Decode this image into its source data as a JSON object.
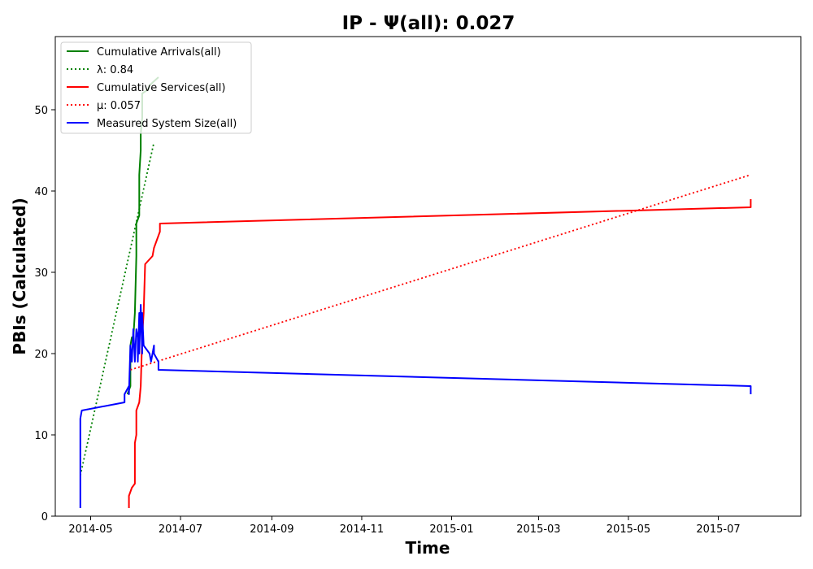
{
  "chart_data": {
    "type": "line",
    "title": "IP -  Ψ(all): 0.027",
    "xlabel": "Time",
    "ylabel": "PBIs (Calculated)",
    "x_type": "date",
    "xlim": [
      "2014-04-07",
      "2015-08-26"
    ],
    "ylim": [
      0,
      59
    ],
    "x_ticks": [
      "2014-05-01",
      "2014-07-01",
      "2014-09-01",
      "2014-11-01",
      "2015-01-01",
      "2015-03-01",
      "2015-05-01",
      "2015-07-01"
    ],
    "x_tick_labels": [
      "2014-05",
      "2014-07",
      "2014-09",
      "2014-11",
      "2015-01",
      "2015-03",
      "2015-05",
      "2015-07"
    ],
    "y_ticks": [
      0,
      10,
      20,
      30,
      40,
      50
    ],
    "y_tick_labels": [
      "0",
      "10",
      "20",
      "30",
      "40",
      "50"
    ],
    "grid": false,
    "legend_position": "top-left",
    "series": [
      {
        "name": "Cumulative Arrivals(all)",
        "legend_label": "Cumulative Arrivals(all)",
        "color": "#008000",
        "style": "solid",
        "points": [
          [
            "2014-05-26",
            15
          ],
          [
            "2014-05-28",
            16
          ],
          [
            "2014-05-28",
            21
          ],
          [
            "2014-05-29",
            22
          ],
          [
            "2014-05-30",
            22
          ],
          [
            "2014-05-31",
            25
          ],
          [
            "2014-06-01",
            32
          ],
          [
            "2014-06-01",
            36
          ],
          [
            "2014-06-03",
            37
          ],
          [
            "2014-06-03",
            42
          ],
          [
            "2014-06-04",
            45
          ],
          [
            "2014-06-04",
            47
          ],
          [
            "2014-06-05",
            49
          ],
          [
            "2014-06-05",
            52
          ],
          [
            "2014-06-09",
            52.5
          ],
          [
            "2014-06-10",
            53
          ],
          [
            "2014-06-13",
            53.5
          ],
          [
            "2014-06-16",
            54
          ]
        ]
      },
      {
        "name": "λ",
        "legend_label": "λ: 0.84",
        "color": "#008000",
        "style": "dotted",
        "points": [
          [
            "2014-04-24",
            5
          ],
          [
            "2014-06-13",
            46
          ]
        ]
      },
      {
        "name": "Cumulative Services(all)",
        "legend_label": "Cumulative Services(all)",
        "color": "#ff0000",
        "style": "solid",
        "points": [
          [
            "2014-05-27",
            1
          ],
          [
            "2014-05-27",
            2.5
          ],
          [
            "2014-05-29",
            3.5
          ],
          [
            "2014-05-31",
            4
          ],
          [
            "2014-05-31",
            9
          ],
          [
            "2014-06-01",
            10
          ],
          [
            "2014-06-01",
            13
          ],
          [
            "2014-06-03",
            14
          ],
          [
            "2014-06-04",
            16
          ],
          [
            "2014-06-05",
            22
          ],
          [
            "2014-06-06",
            25
          ],
          [
            "2014-06-07",
            31
          ],
          [
            "2014-06-12",
            32
          ],
          [
            "2014-06-13",
            33
          ],
          [
            "2014-06-17",
            35
          ],
          [
            "2014-06-17",
            36
          ],
          [
            "2015-07-23",
            38
          ],
          [
            "2015-07-23",
            39
          ]
        ]
      },
      {
        "name": "μ",
        "legend_label": "μ: 0.057",
        "color": "#ff0000",
        "style": "dotted",
        "points": [
          [
            "2014-05-28",
            18
          ],
          [
            "2015-07-23",
            42
          ]
        ]
      },
      {
        "name": "Measured System Size(all)",
        "legend_label": "Measured System Size(all)",
        "color": "#0000ff",
        "style": "solid",
        "points": [
          [
            "2014-04-24",
            1
          ],
          [
            "2014-04-24",
            12
          ],
          [
            "2014-04-25",
            13
          ],
          [
            "2014-05-24",
            14
          ],
          [
            "2014-05-24",
            15
          ],
          [
            "2014-05-27",
            16
          ],
          [
            "2014-05-27",
            15
          ],
          [
            "2014-05-28",
            21
          ],
          [
            "2014-05-29",
            19
          ],
          [
            "2014-05-30",
            23
          ],
          [
            "2014-05-31",
            19
          ],
          [
            "2014-06-01",
            23
          ],
          [
            "2014-06-02",
            22
          ],
          [
            "2014-06-02",
            19
          ],
          [
            "2014-06-03",
            25
          ],
          [
            "2014-06-03",
            20
          ],
          [
            "2014-06-04",
            26
          ],
          [
            "2014-06-05",
            20
          ],
          [
            "2014-06-05",
            25
          ],
          [
            "2014-06-06",
            21
          ],
          [
            "2014-06-10",
            20
          ],
          [
            "2014-06-11",
            19
          ],
          [
            "2014-06-12",
            20
          ],
          [
            "2014-06-13",
            21
          ],
          [
            "2014-06-13",
            20
          ],
          [
            "2014-06-16",
            19
          ],
          [
            "2014-06-16",
            18
          ],
          [
            "2015-07-23",
            16
          ],
          [
            "2015-07-23",
            15
          ]
        ]
      }
    ]
  }
}
